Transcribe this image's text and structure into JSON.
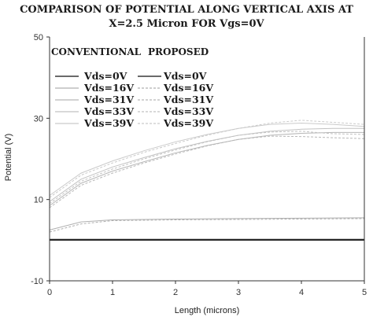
{
  "chart_data": {
    "type": "line",
    "title": "COMPARISON OF POTENTIAL ALONG VERTICAL AXIS AT",
    "subtitle": "X=2.5 Micron FOR Vgs=0V",
    "xlabel": "Length (microns)",
    "ylabel": "Potential (V)",
    "xlim": [
      0,
      5
    ],
    "ylim": [
      -10,
      50
    ],
    "xticks": [
      "0",
      "1",
      "2",
      "3",
      "4",
      "5"
    ],
    "yticks": [
      "-10",
      "10",
      "30",
      "50"
    ],
    "grid": false,
    "legend_placement": "top-left",
    "legend_headers": [
      "CONVENTIONAL",
      "PROPOSED"
    ],
    "legend_conventional": [
      "Vds=0V",
      "Vds=16V",
      "Vds=31V",
      "Vds=33V",
      "Vds=39V"
    ],
    "legend_proposed": [
      "Vds=0V",
      "Vds=16V",
      "Vds=31V",
      "Vds=33V",
      "Vds=39V"
    ],
    "colors": {
      "vds0": "#111111",
      "vds16": "#b0b0b0",
      "vds31": "#b8b8b8",
      "vds33": "#c2c2c2",
      "vds39": "#cacaca"
    },
    "series": [
      {
        "name": "Vds=0V",
        "group": "conventional",
        "x": [
          0,
          1,
          2,
          3,
          4,
          5
        ],
        "y": [
          0,
          0,
          0,
          0,
          0,
          0
        ]
      },
      {
        "name": "Vds=16V",
        "group": "conventional",
        "x": [
          0,
          0.5,
          1,
          2,
          3,
          4,
          5
        ],
        "y": [
          2.5,
          4.5,
          5,
          5.2,
          5.3,
          5.4,
          5.5
        ]
      },
      {
        "name": "Vds=31V",
        "group": "conventional",
        "x": [
          0,
          0.5,
          1,
          1.5,
          2,
          2.5,
          3,
          3.5,
          4,
          4.5,
          5
        ],
        "y": [
          8.5,
          14,
          17,
          19.3,
          21.5,
          23.3,
          24.8,
          25.8,
          26.3,
          26.5,
          26.5
        ]
      },
      {
        "name": "Vds=33V",
        "group": "conventional",
        "x": [
          0,
          0.5,
          1,
          1.5,
          2,
          2.5,
          3,
          3.5,
          4,
          4.5,
          5
        ],
        "y": [
          9.5,
          15,
          18,
          20.3,
          22.5,
          24.3,
          25.8,
          26.8,
          27.3,
          27.5,
          27.5
        ]
      },
      {
        "name": "Vds=39V",
        "group": "conventional",
        "x": [
          0,
          0.5,
          1,
          1.5,
          2,
          2.5,
          3,
          3.5,
          4,
          4.5,
          5
        ],
        "y": [
          11,
          16.5,
          19.5,
          22,
          24.2,
          26,
          27.5,
          28.5,
          28.8,
          28.5,
          28
        ]
      },
      {
        "name": "Vds=0V",
        "group": "proposed",
        "x": [
          0,
          1,
          2,
          3,
          4,
          5
        ],
        "y": [
          0.2,
          0.2,
          0.2,
          0.2,
          0.2,
          0.2
        ]
      },
      {
        "name": "Vds=16V",
        "group": "proposed",
        "x": [
          0,
          0.5,
          1,
          2,
          3,
          4,
          5
        ],
        "y": [
          2,
          4,
          4.8,
          5,
          5.1,
          5.2,
          5.3
        ]
      },
      {
        "name": "Vds=31V",
        "group": "proposed",
        "x": [
          0,
          0.5,
          1,
          1.5,
          2,
          2.5,
          3,
          3.5,
          4,
          4.5,
          5
        ],
        "y": [
          8,
          13.5,
          16.5,
          19,
          21.2,
          23.2,
          24.8,
          25.6,
          25.5,
          25.2,
          25
        ]
      },
      {
        "name": "Vds=33V",
        "group": "proposed",
        "x": [
          0,
          0.5,
          1,
          1.5,
          2,
          2.5,
          3,
          3.5,
          4,
          4.5,
          5
        ],
        "y": [
          9,
          14.5,
          17.5,
          20,
          22.2,
          24.2,
          25.8,
          26.6,
          26.8,
          26.2,
          26
        ]
      },
      {
        "name": "Vds=39V",
        "group": "proposed",
        "x": [
          0,
          0.5,
          1,
          1.5,
          2,
          2.5,
          3,
          3.5,
          4,
          4.5,
          5
        ],
        "y": [
          10.5,
          16,
          19,
          21.6,
          23.8,
          25.8,
          27.5,
          28.8,
          29.5,
          29,
          28.5
        ]
      }
    ]
  }
}
